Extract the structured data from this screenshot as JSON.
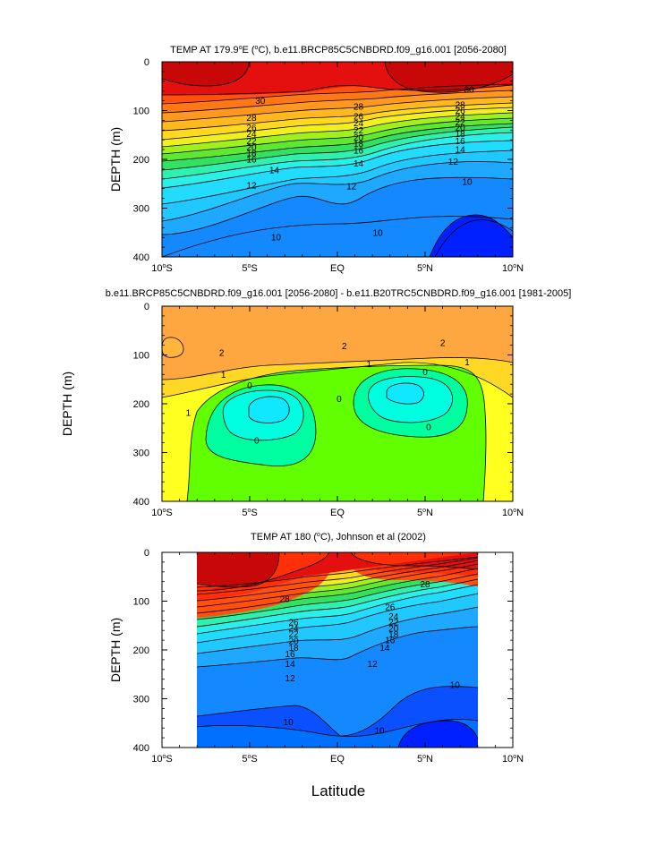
{
  "figure": {
    "xlabel": "Latitude"
  },
  "chart_data": [
    {
      "type": "contour",
      "title_html": "TEMP AT 179.9°E (°C), b.e11.BRCP85C5CNBDRD.f09_g16.001 [2056-2080]",
      "title_parts": [
        "TEMP AT 179.9",
        "o",
        "E (",
        "o",
        "C), b.e11.BRCP85C5CNBDRD.f09_g16.001 [2056-2080]"
      ],
      "ylabel": "DEPTH (m)",
      "xlim": [
        -10,
        10
      ],
      "ylim": [
        0,
        400
      ],
      "x_ticks": [
        "10°S",
        "5°S",
        "EQ",
        "5°N",
        "10°N"
      ],
      "y_ticks": [
        "0",
        "100",
        "200",
        "300",
        "400"
      ],
      "contour_levels": [
        10,
        12,
        14,
        16,
        18,
        20,
        22,
        24,
        26,
        28,
        30
      ],
      "contour_labels": [
        {
          "text": "30",
          "x": -4.4,
          "y": 80
        },
        {
          "text": "30",
          "x": 7.5,
          "y": 57
        },
        {
          "text": "28",
          "x": -4.9,
          "y": 115
        },
        {
          "text": "28",
          "x": 1.2,
          "y": 92
        },
        {
          "text": "28",
          "x": 7.0,
          "y": 88
        },
        {
          "text": "26",
          "x": -4.9,
          "y": 135
        },
        {
          "text": "26",
          "x": 1.2,
          "y": 112
        },
        {
          "text": "26",
          "x": 7.0,
          "y": 100
        },
        {
          "text": "24",
          "x": -4.9,
          "y": 148
        },
        {
          "text": "24",
          "x": 1.2,
          "y": 126
        },
        {
          "text": "24",
          "x": 7.0,
          "y": 112
        },
        {
          "text": "22",
          "x": -4.9,
          "y": 162
        },
        {
          "text": "22",
          "x": 1.2,
          "y": 140
        },
        {
          "text": "22",
          "x": 7.0,
          "y": 124
        },
        {
          "text": "20",
          "x": -4.9,
          "y": 175
        },
        {
          "text": "20",
          "x": 1.2,
          "y": 155
        },
        {
          "text": "20",
          "x": 7.0,
          "y": 135
        },
        {
          "text": "18",
          "x": -4.9,
          "y": 187
        },
        {
          "text": "18",
          "x": 1.2,
          "y": 168
        },
        {
          "text": "18",
          "x": 7.0,
          "y": 148
        },
        {
          "text": "16",
          "x": -4.9,
          "y": 200
        },
        {
          "text": "16",
          "x": 1.2,
          "y": 182
        },
        {
          "text": "16",
          "x": 7.0,
          "y": 162
        },
        {
          "text": "14",
          "x": -3.6,
          "y": 222
        },
        {
          "text": "14",
          "x": 1.2,
          "y": 208
        },
        {
          "text": "14",
          "x": 7.0,
          "y": 180
        },
        {
          "text": "12",
          "x": -4.9,
          "y": 253
        },
        {
          "text": "12",
          "x": 0.8,
          "y": 255
        },
        {
          "text": "12",
          "x": 6.6,
          "y": 205
        },
        {
          "text": "10",
          "x": -3.5,
          "y": 360
        },
        {
          "text": "10",
          "x": 2.3,
          "y": 350
        },
        {
          "text": "10",
          "x": 7.4,
          "y": 246
        }
      ]
    },
    {
      "type": "contour",
      "title": "b.e11.BRCP85C5CNBDRD.f09_g16.001 [2056-2080] - b.e11.B20TRC5CNBDRD.f09_g16.001 [1981-2005]",
      "ylabel": "DEPTH (m)",
      "xlim": [
        -10,
        10
      ],
      "ylim": [
        0,
        400
      ],
      "x_ticks": [
        "10°S",
        "5°S",
        "EQ",
        "5°N",
        "10°N"
      ],
      "y_ticks": [
        "0",
        "100",
        "200",
        "300",
        "400"
      ],
      "contour_levels": [
        -1,
        0,
        1,
        2
      ],
      "contour_labels": [
        {
          "text": "2",
          "x": -6.6,
          "y": 95
        },
        {
          "text": "2",
          "x": 0.4,
          "y": 82
        },
        {
          "text": "2",
          "x": 6.0,
          "y": 75
        },
        {
          "text": "1",
          "x": -6.5,
          "y": 140
        },
        {
          "text": "1",
          "x": 1.8,
          "y": 118
        },
        {
          "text": "1",
          "x": 7.4,
          "y": 115
        },
        {
          "text": "1",
          "x": -8.5,
          "y": 218
        },
        {
          "text": "0",
          "x": -5.0,
          "y": 162
        },
        {
          "text": "0",
          "x": 5.0,
          "y": 135
        },
        {
          "text": "0",
          "x": 0.1,
          "y": 190
        },
        {
          "text": "0",
          "x": -4.6,
          "y": 275
        },
        {
          "text": "0",
          "x": 5.2,
          "y": 248
        }
      ]
    },
    {
      "type": "contour",
      "title_parts": [
        "TEMP AT 180 (",
        "o",
        "C), Johnson et al (2002)"
      ],
      "ylabel": "DEPTH (m)",
      "xlim": [
        -10,
        10
      ],
      "ylim": [
        0,
        400
      ],
      "data_xlim": [
        -8,
        8
      ],
      "x_ticks": [
        "10°S",
        "5°S",
        "EQ",
        "5°N",
        "10°N"
      ],
      "y_ticks": [
        "0",
        "100",
        "200",
        "300",
        "400"
      ],
      "contour_levels": [
        10,
        12,
        14,
        16,
        18,
        20,
        22,
        24,
        26,
        28
      ],
      "contour_labels": [
        {
          "text": "28",
          "x": -3.0,
          "y": 95
        },
        {
          "text": "28",
          "x": 5.0,
          "y": 65
        },
        {
          "text": "26",
          "x": -2.5,
          "y": 143
        },
        {
          "text": "26",
          "x": 3.0,
          "y": 112
        },
        {
          "text": "24",
          "x": -2.5,
          "y": 155
        },
        {
          "text": "24",
          "x": 3.2,
          "y": 131
        },
        {
          "text": "22",
          "x": -2.5,
          "y": 167
        },
        {
          "text": "22",
          "x": 3.2,
          "y": 143
        },
        {
          "text": "20",
          "x": -2.5,
          "y": 182
        },
        {
          "text": "20",
          "x": 3.2,
          "y": 156
        },
        {
          "text": "18",
          "x": -2.5,
          "y": 195
        },
        {
          "text": "18",
          "x": 3.2,
          "y": 168
        },
        {
          "text": "16",
          "x": -2.7,
          "y": 208
        },
        {
          "text": "16",
          "x": 3.0,
          "y": 180
        },
        {
          "text": "14",
          "x": -2.7,
          "y": 228
        },
        {
          "text": "14",
          "x": 2.7,
          "y": 195
        },
        {
          "text": "12",
          "x": -2.7,
          "y": 258
        },
        {
          "text": "12",
          "x": 2.0,
          "y": 228
        },
        {
          "text": "10",
          "x": -2.8,
          "y": 348
        },
        {
          "text": "10",
          "x": 2.4,
          "y": 365
        },
        {
          "text": "10",
          "x": 6.7,
          "y": 272
        }
      ]
    }
  ]
}
